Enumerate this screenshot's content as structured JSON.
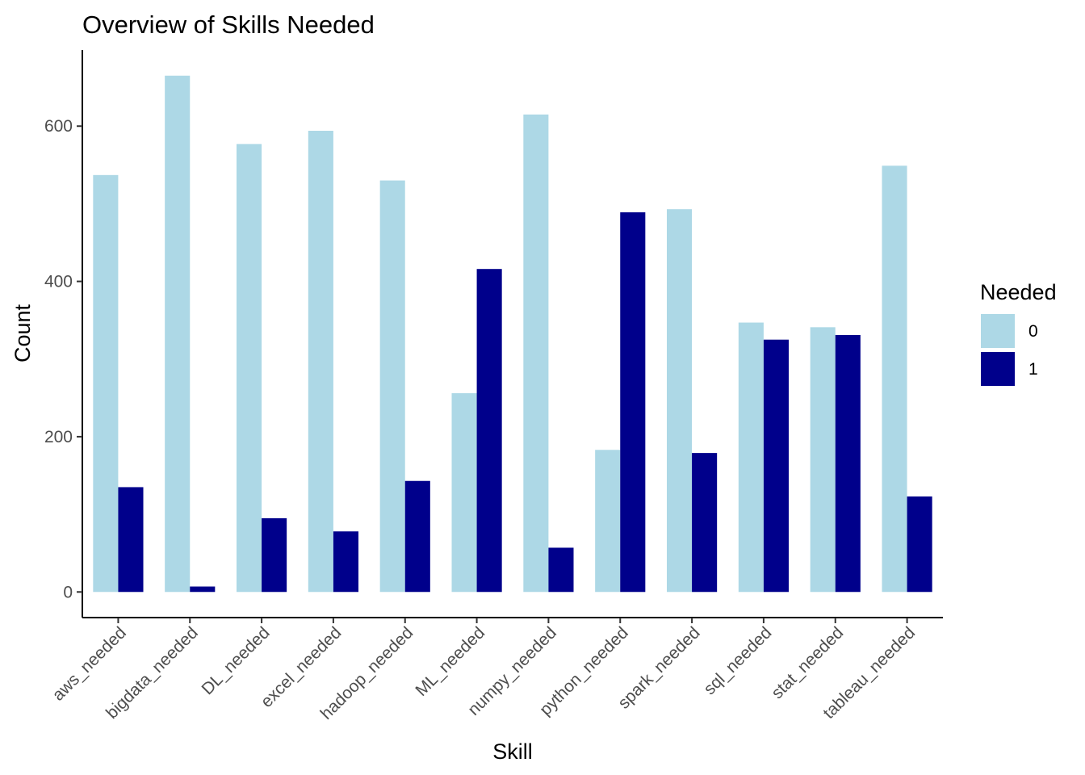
{
  "chart_data": {
    "type": "bar",
    "title": "Overview of Skills Needed",
    "xlabel": "Skill",
    "ylabel": "Count",
    "categories": [
      "aws_needed",
      "bigdata_needed",
      "DL_needed",
      "excel_needed",
      "hadoop_needed",
      "ML_needed",
      "numpy_needed",
      "python_needed",
      "spark_needed",
      "sql_needed",
      "stat_needed",
      "tableau_needed"
    ],
    "series": [
      {
        "name": "0",
        "color": "#add8e6",
        "values": [
          537,
          665,
          577,
          594,
          530,
          256,
          615,
          183,
          493,
          347,
          341,
          549
        ]
      },
      {
        "name": "1",
        "color": "#00008b",
        "values": [
          135,
          7,
          95,
          78,
          143,
          416,
          57,
          489,
          179,
          325,
          331,
          123
        ]
      }
    ],
    "ylim": [
      -33,
      698
    ],
    "yticks": [
      0,
      200,
      400,
      600
    ],
    "legend": {
      "title": "Needed",
      "placement": "right"
    },
    "grid": false
  }
}
